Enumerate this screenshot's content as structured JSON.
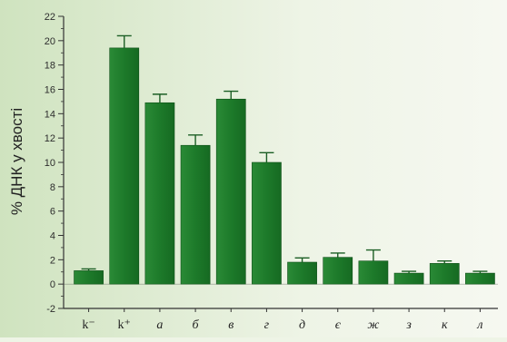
{
  "chart_data": {
    "type": "bar",
    "title": "",
    "xlabel": "",
    "ylabel": "% ДНК у хвості",
    "ylim": [
      -2,
      22
    ],
    "yticks": [
      -2,
      0,
      2,
      4,
      6,
      8,
      10,
      12,
      14,
      16,
      18,
      20,
      22
    ],
    "grid": false,
    "categories": [
      "k⁻",
      "k⁺",
      "а",
      "б",
      "в",
      "г",
      "д",
      "є",
      "ж",
      "з",
      "к",
      "л"
    ],
    "values": [
      1.1,
      19.4,
      14.9,
      11.4,
      15.2,
      10.0,
      1.8,
      2.2,
      1.9,
      0.9,
      1.7,
      0.9
    ],
    "errors": [
      0.15,
      1.0,
      0.7,
      0.85,
      0.65,
      0.8,
      0.35,
      0.35,
      0.9,
      0.15,
      0.2,
      0.15
    ],
    "bar_color": "#1f7a2c",
    "background_color": "#eef4e6"
  }
}
